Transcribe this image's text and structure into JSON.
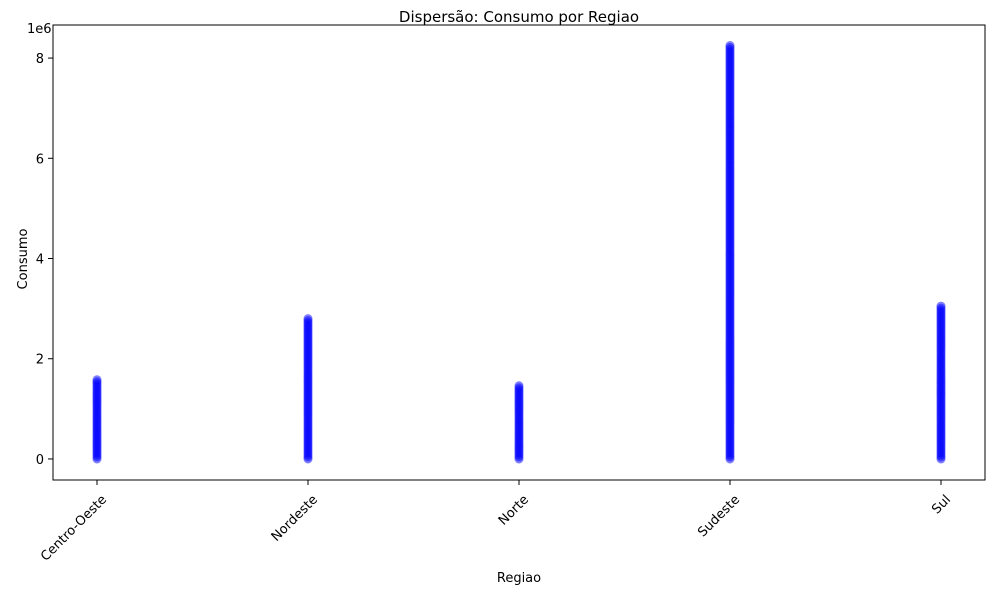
{
  "chart_data": {
    "type": "scatter",
    "title": "Dispersão: Consumo por Regiao",
    "xlabel": "Regiao",
    "ylabel": "Consumo",
    "y_multiplier_label": "1e6",
    "categories": [
      "Centro-Oeste",
      "Nordeste",
      "Norte",
      "Sudeste",
      "Sul"
    ],
    "category_ranges": [
      {
        "category": "Centro-Oeste",
        "min": 0,
        "max": 1580000
      },
      {
        "category": "Nordeste",
        "min": 0,
        "max": 2800000
      },
      {
        "category": "Norte",
        "min": 0,
        "max": 1460000
      },
      {
        "category": "Sudeste",
        "min": 0,
        "max": 8250000
      },
      {
        "category": "Sul",
        "min": 0,
        "max": 3050000
      }
    ],
    "y_ticks": [
      0,
      2,
      4,
      6,
      8
    ],
    "ylim_scaled": [
      -0.42,
      8.66
    ],
    "grid": false,
    "marker_color": "#0000ff",
    "marker_alpha": 0.5
  }
}
